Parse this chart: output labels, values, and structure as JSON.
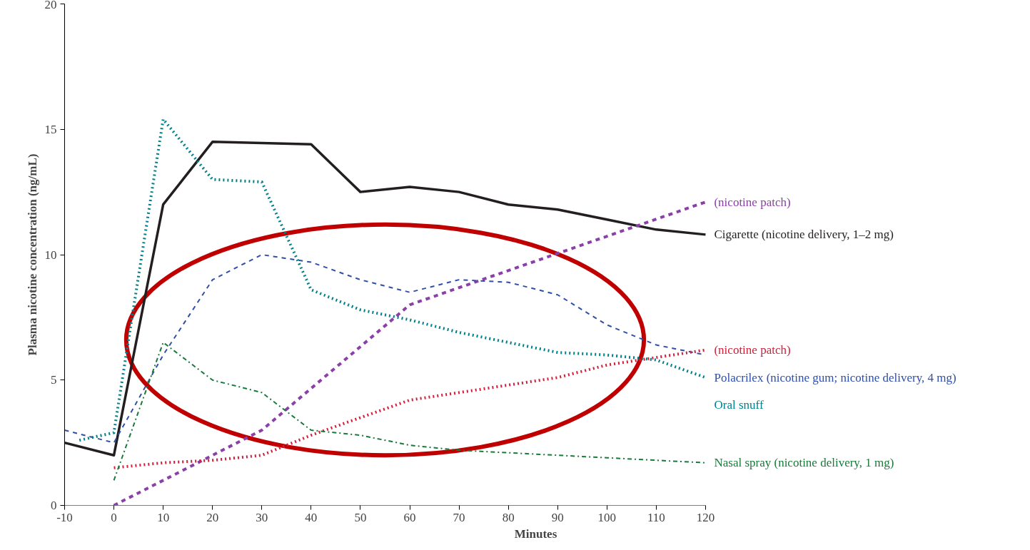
{
  "chart_data": {
    "type": "line",
    "xlabel": "Minutes",
    "ylabel": "Plasma nicotine concentration (ng/mL)",
    "xlim": [
      -10,
      120
    ],
    "ylim": [
      0,
      20
    ],
    "xticks": [
      -10,
      0,
      10,
      20,
      30,
      40,
      50,
      60,
      70,
      80,
      90,
      100,
      110,
      120
    ],
    "yticks": [
      0,
      5,
      10,
      15,
      20
    ],
    "grid": false,
    "marker": "none",
    "series": [
      {
        "name": "Cigarette (nicotine delivery, 1–2 mg)",
        "color": "#231f20",
        "line_style": "solid",
        "x": [
          -10,
          0,
          10,
          20,
          30,
          40,
          50,
          60,
          70,
          80,
          90,
          100,
          110,
          120
        ],
        "values": [
          2.5,
          2,
          12,
          14.5,
          14.45,
          14.4,
          12.5,
          12.7,
          12.5,
          12,
          11.8,
          11.4,
          11,
          10.8
        ]
      },
      {
        "name": "(nicotine patch)",
        "color": "#8b3fa8",
        "line_style": "dashed",
        "x": [
          0,
          30,
          60,
          120
        ],
        "values": [
          0,
          3,
          8,
          12.1
        ]
      },
      {
        "name": "Polacrilex (nicotine gum; nicotine delivery, 4 mg)",
        "color": "#2f4fa8",
        "line_style": "dashed",
        "x": [
          -10,
          0,
          10,
          20,
          30,
          40,
          50,
          60,
          70,
          80,
          90,
          100,
          110,
          120
        ],
        "values": [
          3,
          2.5,
          6,
          9,
          10,
          9.7,
          9,
          8.5,
          9,
          8.9,
          8.4,
          7.2,
          6.4,
          6
        ]
      },
      {
        "name": "Oral snuff",
        "color": "#00808a",
        "line_style": "dotted",
        "x": [
          -7,
          0,
          10,
          20,
          30,
          40,
          50,
          60,
          70,
          80,
          90,
          100,
          110,
          120
        ],
        "values": [
          2.6,
          2.9,
          15.4,
          13,
          12.9,
          8.6,
          7.8,
          7.4,
          6.9,
          6.5,
          6.1,
          6,
          5.8,
          5.1
        ]
      },
      {
        "name": "(nicotine patch)",
        "color": "#d0203a",
        "line_style": "dotted",
        "x": [
          0,
          10,
          20,
          30,
          40,
          50,
          60,
          70,
          80,
          90,
          100,
          110,
          120
        ],
        "values": [
          1.5,
          1.7,
          1.8,
          2,
          2.8,
          3.5,
          4.2,
          4.5,
          4.8,
          5.1,
          5.6,
          5.9,
          6.2
        ]
      },
      {
        "name": "Nasal spray (nicotine delivery, 1 mg)",
        "color": "#1a7a3a",
        "line_style": "dashdot",
        "x": [
          0,
          10,
          20,
          30,
          40,
          50,
          60,
          70,
          80,
          90,
          100,
          120
        ],
        "values": [
          1,
          6.5,
          5,
          4.5,
          3,
          2.8,
          2.4,
          2.2,
          2.1,
          2,
          1.9,
          1.7
        ]
      }
    ]
  }
}
